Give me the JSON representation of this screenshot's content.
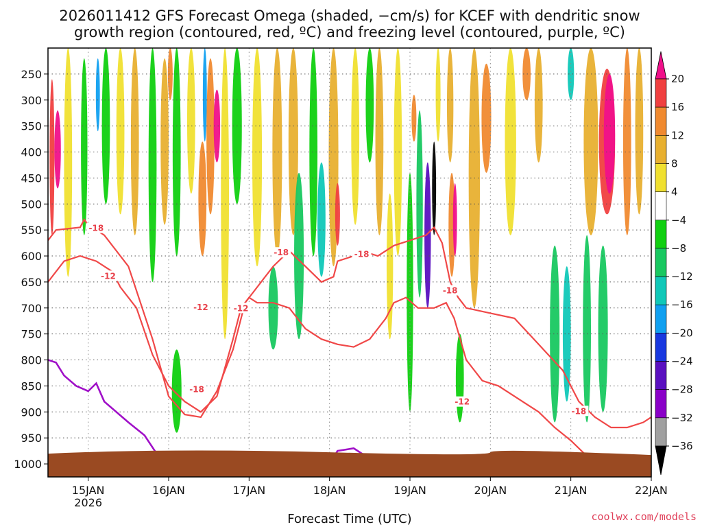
{
  "chart_data": {
    "type": "heatmap",
    "title_line1": "2026011412 GFS Forecast Omega (shaded, −cm/s) for KCEF with dendritic snow",
    "title_line2": "growth region (contoured, red, ºC) and freezing level (contoured, purple, ºC)",
    "xlabel": "Forecast Time (UTC)",
    "credit": "coolwx.com/models",
    "x_ticks": [
      {
        "label": "15JAN",
        "sub": "2026",
        "day": 1
      },
      {
        "label": "16JAN",
        "sub": "",
        "day": 2
      },
      {
        "label": "17JAN",
        "sub": "",
        "day": 3
      },
      {
        "label": "18JAN",
        "sub": "",
        "day": 4
      },
      {
        "label": "19JAN",
        "sub": "",
        "day": 5
      },
      {
        "label": "20JAN",
        "sub": "",
        "day": 6
      },
      {
        "label": "21JAN",
        "sub": "",
        "day": 7
      },
      {
        "label": "22JAN",
        "sub": "",
        "day": 8
      }
    ],
    "x_range_days": [
      0.5,
      8.0
    ],
    "y_ticks": [
      250,
      300,
      350,
      400,
      450,
      500,
      550,
      600,
      650,
      700,
      750,
      800,
      850,
      900,
      950,
      1000
    ],
    "y_range_hPa": [
      200,
      1025
    ],
    "colorbar": {
      "levels": [
        -36,
        -32,
        -28,
        -24,
        -20,
        -16,
        -12,
        -8,
        -4,
        4,
        8,
        12,
        16,
        20
      ],
      "labels": [
        "20",
        "16",
        "12",
        "8",
        "4",
        "−4",
        "−8",
        "−12",
        "−16",
        "−20",
        "−24",
        "−28",
        "−32",
        "−36"
      ],
      "colors": [
        "#000000",
        "#a0a0a0",
        "#8a00c8",
        "#5a10c0",
        "#1838e0",
        "#10a0f0",
        "#10c8b8",
        "#18c860",
        "#10d010",
        "#ffffff",
        "#f0e030",
        "#e8b030",
        "#f08a30",
        "#f04040",
        "#f0108a"
      ]
    },
    "contour_labels": [
      {
        "text": "-18"
      },
      {
        "text": "-12"
      },
      {
        "text": "-12"
      },
      {
        "text": "-18"
      },
      {
        "text": "-18"
      },
      {
        "text": "-18"
      },
      {
        "text": "-12"
      },
      {
        "text": "-18"
      },
      {
        "text": "-12"
      },
      {
        "text": "-18"
      }
    ],
    "shading_bands": [
      {
        "day": 0.55,
        "width": 0.06,
        "p_top": 260,
        "p_bot": 560,
        "value": 16
      },
      {
        "day": 0.62,
        "width": 0.08,
        "p_top": 320,
        "p_bot": 470,
        "value": 22
      },
      {
        "day": 0.75,
        "width": 0.1,
        "p_top": 200,
        "p_bot": 640,
        "value": 6
      },
      {
        "day": 0.95,
        "width": 0.08,
        "p_top": 220,
        "p_bot": 560,
        "value": -8
      },
      {
        "day": 1.12,
        "width": 0.05,
        "p_top": 220,
        "p_bot": 360,
        "value": -18
      },
      {
        "day": 1.22,
        "width": 0.1,
        "p_top": 200,
        "p_bot": 500,
        "value": -6
      },
      {
        "day": 1.4,
        "width": 0.1,
        "p_top": 200,
        "p_bot": 520,
        "value": 6
      },
      {
        "day": 1.58,
        "width": 0.1,
        "p_top": 200,
        "p_bot": 560,
        "value": 10
      },
      {
        "day": 1.8,
        "width": 0.1,
        "p_top": 200,
        "p_bot": 650,
        "value": -8
      },
      {
        "day": 1.95,
        "width": 0.1,
        "p_top": 220,
        "p_bot": 540,
        "value": 10
      },
      {
        "day": 2.02,
        "width": 0.06,
        "p_top": 200,
        "p_bot": 300,
        "value": 14
      },
      {
        "day": 2.1,
        "width": 0.1,
        "p_top": 200,
        "p_bot": 600,
        "value": -6
      },
      {
        "day": 2.1,
        "width": 0.12,
        "p_top": 780,
        "p_bot": 940,
        "value": -6
      },
      {
        "day": 2.28,
        "width": 0.1,
        "p_top": 200,
        "p_bot": 480,
        "value": 6
      },
      {
        "day": 2.45,
        "width": 0.05,
        "p_top": 200,
        "p_bot": 380,
        "value": -18
      },
      {
        "day": 2.42,
        "width": 0.1,
        "p_top": 380,
        "p_bot": 600,
        "value": 14
      },
      {
        "day": 2.52,
        "width": 0.1,
        "p_top": 220,
        "p_bot": 520,
        "value": 12
      },
      {
        "day": 2.6,
        "width": 0.08,
        "p_top": 280,
        "p_bot": 420,
        "value": 22
      },
      {
        "day": 2.7,
        "width": 0.1,
        "p_top": 200,
        "p_bot": 760,
        "value": 6
      },
      {
        "day": 2.85,
        "width": 0.12,
        "p_top": 200,
        "p_bot": 500,
        "value": -6
      },
      {
        "day": 3.1,
        "width": 0.12,
        "p_top": 200,
        "p_bot": 620,
        "value": 6
      },
      {
        "day": 3.3,
        "width": 0.12,
        "p_top": 620,
        "p_bot": 780,
        "value": -10
      },
      {
        "day": 3.35,
        "width": 0.12,
        "p_top": 200,
        "p_bot": 600,
        "value": 8
      },
      {
        "day": 3.55,
        "width": 0.12,
        "p_top": 200,
        "p_bot": 560,
        "value": 8
      },
      {
        "day": 3.62,
        "width": 0.12,
        "p_top": 440,
        "p_bot": 760,
        "value": -12
      },
      {
        "day": 3.8,
        "width": 0.1,
        "p_top": 200,
        "p_bot": 600,
        "value": -8
      },
      {
        "day": 3.9,
        "width": 0.1,
        "p_top": 420,
        "p_bot": 640,
        "value": -14
      },
      {
        "day": 4.05,
        "width": 0.12,
        "p_top": 200,
        "p_bot": 620,
        "value": 10
      },
      {
        "day": 4.1,
        "width": 0.06,
        "p_top": 460,
        "p_bot": 580,
        "value": 16
      },
      {
        "day": 4.32,
        "width": 0.1,
        "p_top": 200,
        "p_bot": 540,
        "value": 6
      },
      {
        "day": 4.5,
        "width": 0.1,
        "p_top": 200,
        "p_bot": 420,
        "value": -6
      },
      {
        "day": 4.62,
        "width": 0.1,
        "p_top": 200,
        "p_bot": 560,
        "value": 8
      },
      {
        "day": 4.75,
        "width": 0.08,
        "p_top": 480,
        "p_bot": 760,
        "value": 6
      },
      {
        "day": 4.85,
        "width": 0.1,
        "p_top": 200,
        "p_bot": 600,
        "value": 6
      },
      {
        "day": 5.0,
        "width": 0.08,
        "p_top": 440,
        "p_bot": 900,
        "value": -8
      },
      {
        "day": 5.05,
        "width": 0.06,
        "p_top": 290,
        "p_bot": 380,
        "value": 14
      },
      {
        "day": 5.12,
        "width": 0.08,
        "p_top": 320,
        "p_bot": 680,
        "value": -12
      },
      {
        "day": 5.22,
        "width": 0.08,
        "p_top": 420,
        "p_bot": 700,
        "value": -26
      },
      {
        "day": 5.3,
        "width": 0.05,
        "p_top": 380,
        "p_bot": 560,
        "value": -40
      },
      {
        "day": 5.35,
        "width": 0.06,
        "p_top": 200,
        "p_bot": 380,
        "value": 6
      },
      {
        "day": 5.52,
        "width": 0.08,
        "p_top": 440,
        "p_bot": 640,
        "value": 14
      },
      {
        "day": 5.56,
        "width": 0.05,
        "p_top": 460,
        "p_bot": 600,
        "value": 22
      },
      {
        "day": 5.5,
        "width": 0.08,
        "p_top": 200,
        "p_bot": 420,
        "value": 8
      },
      {
        "day": 5.62,
        "width": 0.1,
        "p_top": 750,
        "p_bot": 920,
        "value": -8
      },
      {
        "day": 5.8,
        "width": 0.14,
        "p_top": 200,
        "p_bot": 700,
        "value": 8
      },
      {
        "day": 5.95,
        "width": 0.12,
        "p_top": 230,
        "p_bot": 440,
        "value": 12
      },
      {
        "day": 6.25,
        "width": 0.14,
        "p_top": 200,
        "p_bot": 560,
        "value": 6
      },
      {
        "day": 6.45,
        "width": 0.1,
        "p_top": 200,
        "p_bot": 300,
        "value": 14
      },
      {
        "day": 6.6,
        "width": 0.1,
        "p_top": 200,
        "p_bot": 420,
        "value": 8
      },
      {
        "day": 6.8,
        "width": 0.12,
        "p_top": 580,
        "p_bot": 920,
        "value": -10
      },
      {
        "day": 6.95,
        "width": 0.1,
        "p_top": 620,
        "p_bot": 880,
        "value": -14
      },
      {
        "day": 7.0,
        "width": 0.08,
        "p_top": 200,
        "p_bot": 300,
        "value": -14
      },
      {
        "day": 7.2,
        "width": 0.1,
        "p_top": 560,
        "p_bot": 920,
        "value": -12
      },
      {
        "day": 7.25,
        "width": 0.18,
        "p_top": 200,
        "p_bot": 560,
        "value": 10
      },
      {
        "day": 7.4,
        "width": 0.12,
        "p_top": 580,
        "p_bot": 900,
        "value": -10
      },
      {
        "day": 7.45,
        "width": 0.2,
        "p_top": 240,
        "p_bot": 520,
        "value": 16
      },
      {
        "day": 7.48,
        "width": 0.14,
        "p_top": 250,
        "p_bot": 480,
        "value": 22
      },
      {
        "day": 7.7,
        "width": 0.1,
        "p_top": 200,
        "p_bot": 560,
        "value": 12
      },
      {
        "day": 7.85,
        "width": 0.1,
        "p_top": 200,
        "p_bot": 520,
        "value": 8
      }
    ],
    "contours_dgz": [
      {
        "value": -18,
        "points": [
          [
            0.5,
            570
          ],
          [
            0.6,
            550
          ],
          [
            0.9,
            545
          ],
          [
            0.95,
            530
          ],
          [
            1.0,
            540
          ],
          [
            1.1,
            550
          ],
          [
            1.2,
            560
          ],
          [
            1.5,
            620
          ],
          [
            1.8,
            760
          ],
          [
            2.0,
            870
          ],
          [
            2.2,
            905
          ],
          [
            2.4,
            910
          ],
          [
            2.6,
            860
          ],
          [
            2.8,
            780
          ],
          [
            2.95,
            690
          ],
          [
            3.1,
            660
          ],
          [
            3.3,
            620
          ],
          [
            3.5,
            590
          ],
          [
            3.7,
            620
          ],
          [
            3.9,
            650
          ],
          [
            4.05,
            640
          ],
          [
            4.1,
            610
          ],
          [
            4.3,
            600
          ],
          [
            4.5,
            595
          ],
          [
            4.6,
            600
          ],
          [
            4.8,
            580
          ],
          [
            5.0,
            570
          ],
          [
            5.2,
            560
          ],
          [
            5.3,
            545
          ],
          [
            5.4,
            575
          ],
          [
            5.5,
            650
          ],
          [
            5.6,
            680
          ],
          [
            5.7,
            700
          ],
          [
            6.0,
            710
          ],
          [
            6.3,
            720
          ],
          [
            6.6,
            770
          ],
          [
            6.9,
            820
          ],
          [
            7.1,
            880
          ],
          [
            7.3,
            910
          ],
          [
            7.5,
            930
          ],
          [
            7.7,
            930
          ],
          [
            7.9,
            920
          ],
          [
            8.0,
            910
          ]
        ]
      },
      {
        "value": -12,
        "points": [
          [
            0.5,
            650
          ],
          [
            0.7,
            610
          ],
          [
            0.9,
            600
          ],
          [
            1.1,
            610
          ],
          [
            1.3,
            630
          ],
          [
            1.4,
            660
          ],
          [
            1.6,
            700
          ],
          [
            1.8,
            790
          ],
          [
            2.0,
            850
          ],
          [
            2.2,
            880
          ],
          [
            2.4,
            900
          ],
          [
            2.6,
            870
          ],
          [
            2.8,
            760
          ],
          [
            2.9,
            700
          ],
          [
            3.0,
            680
          ],
          [
            3.1,
            690
          ],
          [
            3.3,
            690
          ],
          [
            3.5,
            700
          ],
          [
            3.7,
            740
          ],
          [
            3.9,
            760
          ],
          [
            4.1,
            770
          ],
          [
            4.3,
            775
          ],
          [
            4.5,
            760
          ],
          [
            4.7,
            720
          ],
          [
            4.8,
            690
          ],
          [
            4.95,
            680
          ],
          [
            5.1,
            700
          ],
          [
            5.3,
            700
          ],
          [
            5.45,
            690
          ],
          [
            5.55,
            720
          ],
          [
            5.7,
            800
          ],
          [
            5.9,
            840
          ],
          [
            6.1,
            850
          ],
          [
            6.4,
            880
          ],
          [
            6.6,
            900
          ],
          [
            6.8,
            930
          ],
          [
            7.0,
            955
          ],
          [
            7.2,
            985
          ],
          [
            7.5,
            995
          ],
          [
            7.8,
            990
          ],
          [
            8.0,
            985
          ]
        ]
      }
    ],
    "contours_freezing": [
      {
        "value": 0,
        "points": [
          [
            0.5,
            800
          ],
          [
            0.6,
            805
          ],
          [
            0.7,
            830
          ],
          [
            0.85,
            850
          ],
          [
            1.0,
            860
          ],
          [
            1.1,
            845
          ],
          [
            1.2,
            880
          ],
          [
            1.5,
            920
          ],
          [
            1.7,
            945
          ],
          [
            1.85,
            980
          ],
          [
            1.95,
            1010
          ]
        ]
      },
      {
        "value": 0,
        "points": [
          [
            4.0,
            1000
          ],
          [
            4.1,
            975
          ],
          [
            4.3,
            970
          ],
          [
            4.45,
            985
          ],
          [
            4.35,
            1000
          ]
        ]
      },
      {
        "value": 0,
        "points": [
          [
            4.6,
            1000
          ],
          [
            4.7,
            990
          ],
          [
            4.85,
            1000
          ]
        ]
      }
    ],
    "terrain": {
      "surface_hPa": 975,
      "color": "#9a4a22"
    }
  }
}
